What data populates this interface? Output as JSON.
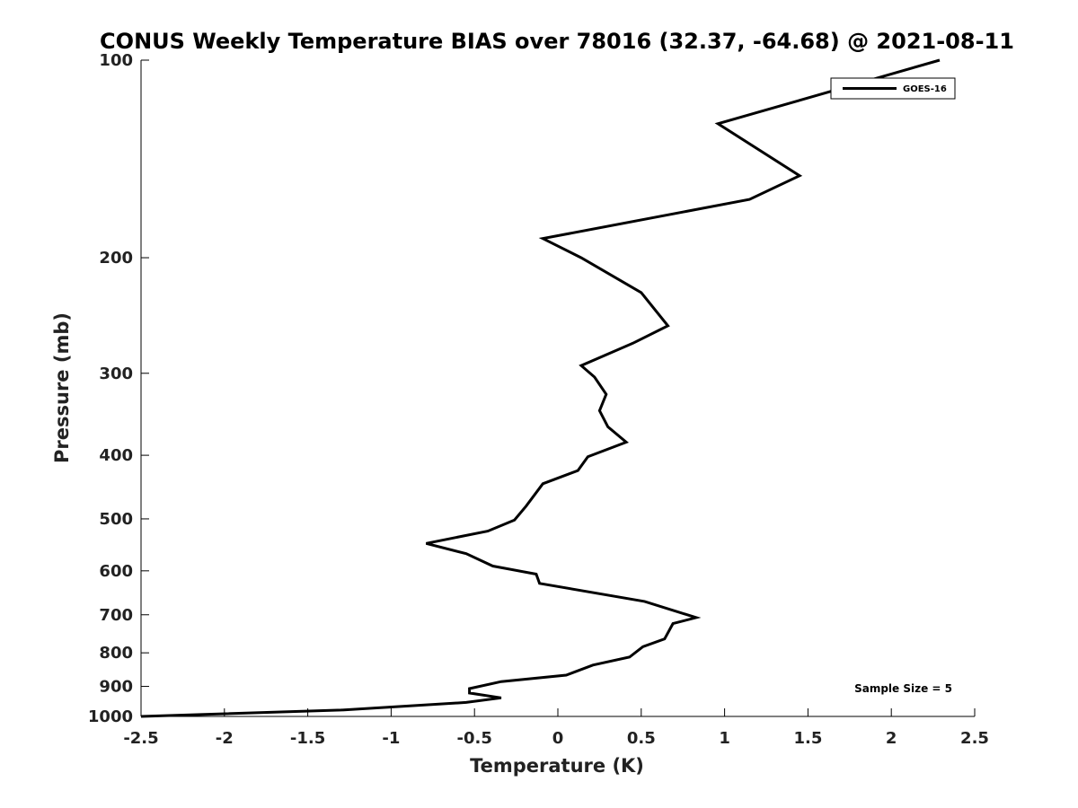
{
  "chart_data": {
    "type": "line",
    "title": "CONUS Weekly Temperature BIAS over 78016 (32.37, -64.68) @ 2021-08-11",
    "xlabel": "Temperature (K)",
    "ylabel": "Pressure (mb)",
    "xlim": [
      -2.5,
      2.5
    ],
    "ylim": [
      1000,
      100
    ],
    "y_scale": "log",
    "x_ticks": [
      -2.5,
      -2,
      -1.5,
      -1,
      -0.5,
      0,
      0.5,
      1,
      1.5,
      2,
      2.5
    ],
    "x_tick_labels": [
      "-2.5",
      "-2",
      "-1.5",
      "-1",
      "-0.5",
      "0",
      "0.5",
      "1",
      "1.5",
      "2",
      "2.5"
    ],
    "y_ticks": [
      100,
      200,
      300,
      400,
      500,
      600,
      700,
      800,
      900,
      1000
    ],
    "y_tick_labels": [
      "100",
      "200",
      "300",
      "400",
      "500",
      "600",
      "700",
      "800",
      "900",
      "1000"
    ],
    "grid": false,
    "legend_position": "top-right",
    "annotation": "Sample Size = 5",
    "series": [
      {
        "name": "GOES-16",
        "color": "#000000",
        "points": [
          {
            "x": 2.29,
            "y": 100
          },
          {
            "x": 0.96,
            "y": 125
          },
          {
            "x": 1.45,
            "y": 150
          },
          {
            "x": 1.15,
            "y": 163
          },
          {
            "x": -0.09,
            "y": 187
          },
          {
            "x": 0.14,
            "y": 200
          },
          {
            "x": 0.5,
            "y": 226
          },
          {
            "x": 0.66,
            "y": 254
          },
          {
            "x": 0.45,
            "y": 270
          },
          {
            "x": 0.14,
            "y": 292
          },
          {
            "x": 0.22,
            "y": 304
          },
          {
            "x": 0.29,
            "y": 323
          },
          {
            "x": 0.25,
            "y": 342
          },
          {
            "x": 0.3,
            "y": 362
          },
          {
            "x": 0.41,
            "y": 382
          },
          {
            "x": 0.18,
            "y": 402
          },
          {
            "x": 0.12,
            "y": 422
          },
          {
            "x": -0.09,
            "y": 442
          },
          {
            "x": -0.19,
            "y": 478
          },
          {
            "x": -0.26,
            "y": 502
          },
          {
            "x": -0.42,
            "y": 522
          },
          {
            "x": -0.79,
            "y": 545
          },
          {
            "x": -0.55,
            "y": 565
          },
          {
            "x": -0.39,
            "y": 590
          },
          {
            "x": -0.13,
            "y": 607
          },
          {
            "x": -0.11,
            "y": 627
          },
          {
            "x": 0.52,
            "y": 668
          },
          {
            "x": 0.83,
            "y": 707
          },
          {
            "x": 0.69,
            "y": 722
          },
          {
            "x": 0.64,
            "y": 762
          },
          {
            "x": 0.51,
            "y": 783
          },
          {
            "x": 0.43,
            "y": 812
          },
          {
            "x": 0.21,
            "y": 835
          },
          {
            "x": 0.05,
            "y": 865
          },
          {
            "x": -0.34,
            "y": 885
          },
          {
            "x": -0.53,
            "y": 907
          },
          {
            "x": -0.53,
            "y": 921
          },
          {
            "x": -0.34,
            "y": 937
          },
          {
            "x": -0.55,
            "y": 952
          },
          {
            "x": -1.3,
            "y": 978
          },
          {
            "x": -2.5,
            "y": 1000
          }
        ]
      }
    ]
  }
}
